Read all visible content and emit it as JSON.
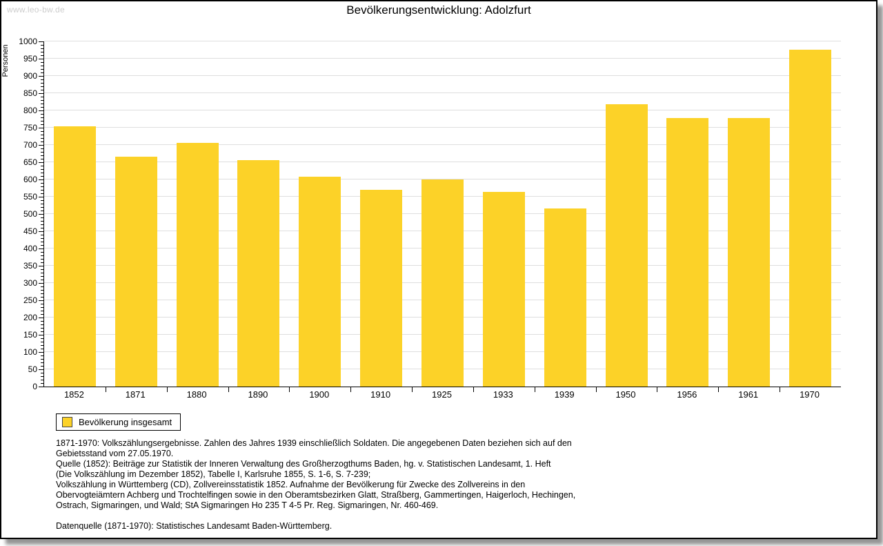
{
  "page": {
    "watermark": "www.leo-bw.de",
    "title": "Bevölkerungsentwicklung: Adolzfurt"
  },
  "chart_data": {
    "type": "bar",
    "title": "Bevölkerungsentwicklung: Adolzfurt",
    "xlabel": "",
    "ylabel": "Personen",
    "categories": [
      "1852",
      "1871",
      "1880",
      "1890",
      "1900",
      "1910",
      "1925",
      "1933",
      "1939",
      "1950",
      "1956",
      "1961",
      "1970"
    ],
    "values": [
      755,
      667,
      706,
      657,
      608,
      570,
      600,
      565,
      517,
      818,
      778,
      779,
      976
    ],
    "series_name": "Bevölkerung insgesamt",
    "ylim": [
      0,
      1000
    ],
    "ytick_step": 50,
    "minor_tick_step": 10,
    "grid": true,
    "legend_position": "bottom-left",
    "bar_color": "#fcd228",
    "grid_color": "#dedede",
    "axis_color": "#000000"
  },
  "footnotes": {
    "lines": [
      "1871-1970: Volkszählungsergebnisse. Zahlen des Jahres 1939 einschließlich Soldaten. Die angegebenen Daten beziehen sich auf den",
      "Gebietsstand vom 27.05.1970.",
      "Quelle (1852): Beiträge zur Statistik der Inneren Verwaltung des Großherzogthums Baden, hg. v. Statistischen Landesamt, 1. Heft",
      "(Die Volkszählung im Dezember 1852), Tabelle I, Karlsruhe 1855, S. 1-6, S. 7-239;",
      "Volkszählung in Württemberg (CD), Zollvereinsstatistik 1852. Aufnahme der Bevölkerung für Zwecke des Zollvereins in den",
      "Obervogteiämtern Achberg und Trochtelfingen sowie in den Oberamtsbezirken Glatt, Straßberg, Gammertingen, Haigerloch, Hechingen,",
      "Ostrach, Sigmaringen, und Wald; StA Sigmaringen Ho 235 T 4-5 Pr. Reg. Sigmaringen, Nr. 460-469.",
      "",
      "Datenquelle (1871-1970): Statistisches Landesamt Baden-Württemberg."
    ]
  }
}
